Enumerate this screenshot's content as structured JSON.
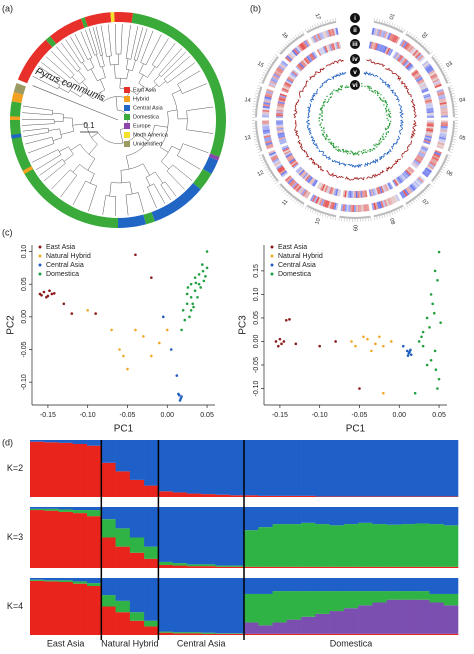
{
  "chart_data": [
    {
      "type": "tree",
      "panel": "(a)",
      "annotation": "Pyrus communis",
      "scale_label": "0.1",
      "legend": [
        {
          "name": "East Asia",
          "color": "#e8302a"
        },
        {
          "name": "Hybrid",
          "color": "#f4a021"
        },
        {
          "name": "Central Asia",
          "color": "#2166c4"
        },
        {
          "name": "Domestica",
          "color": "#3aaa3a"
        },
        {
          "name": "Europe",
          "color": "#8e44ad"
        },
        {
          "name": "North America",
          "color": "#f5e12a"
        },
        {
          "name": "Unidentified",
          "color": "#9a9a62"
        }
      ]
    },
    {
      "type": "circos",
      "panel": "(b)",
      "rings": [
        "i",
        "ii",
        "iii",
        "iv",
        "v",
        "vi"
      ],
      "chromosomes": [
        "01",
        "02",
        "03",
        "04",
        "05",
        "06",
        "07",
        "08",
        "09",
        "10",
        "11",
        "12",
        "13",
        "14",
        "15",
        "16",
        "17"
      ]
    },
    {
      "type": "scatter",
      "panel": "(c)",
      "xlabel": "PC1",
      "ylabel": "PC2",
      "xlim": [
        -0.17,
        0.06
      ],
      "xticks": [
        -0.15,
        {
          "value": -0.1,
          "label": "-0.10"
        },
        -0.05,
        {
          "value": 0,
          "label": "0.00"
        },
        0.05
      ],
      "ylim": [
        -0.135,
        0.11
      ],
      "yticks": [
        {
          "value": -0.1,
          "label": "-0.10"
        },
        -0.05,
        {
          "value": 0,
          "label": "0.00"
        },
        0.05,
        {
          "value": 0.1,
          "label": "0.10"
        }
      ],
      "series": [
        {
          "name": "East Asia",
          "color": "#8b1a1a",
          "x": [
            -0.16,
            -0.155,
            -0.15,
            -0.148,
            -0.145,
            -0.152,
            -0.142,
            -0.158,
            -0.13,
            -0.12,
            -0.09,
            -0.04,
            -0.02
          ],
          "values": [
            0.035,
            0.038,
            0.032,
            0.04,
            0.035,
            0.03,
            0.036,
            0.033,
            0.02,
            0.005,
            0.005,
            0.095,
            0.06
          ]
        },
        {
          "name": "Natural Hybrid",
          "color": "#f0a82a",
          "x": [
            -0.1,
            -0.07,
            -0.06,
            -0.05,
            -0.04,
            -0.03,
            -0.02,
            -0.01,
            0,
            -0.055
          ],
          "values": [
            0.01,
            -0.02,
            -0.05,
            -0.08,
            -0.02,
            -0.03,
            -0.06,
            -0.04,
            -0.02,
            -0.06
          ]
        },
        {
          "name": "Central Asia",
          "color": "#1f5fbf",
          "x": [
            0.015,
            0.017,
            0.014,
            0.018,
            0.016,
            0.012,
            0.005,
            -0.005
          ],
          "values": [
            -0.12,
            -0.125,
            -0.118,
            -0.122,
            -0.128,
            -0.09,
            -0.05,
            0
          ]
        },
        {
          "name": "Domestica",
          "color": "#22a040",
          "x": [
            0.03,
            0.035,
            0.04,
            0.045,
            0.05,
            0.04,
            0.035,
            0.03,
            0.025,
            0.02,
            0.028,
            0.032,
            0.038,
            0.042,
            0.046,
            0.022,
            0.018,
            0.025,
            0.033,
            0.044,
            0.05,
            0.048,
            0.03,
            0.036,
            0.026
          ],
          "values": [
            0.05,
            0.06,
            0.065,
            0.07,
            0.075,
            0.05,
            0.04,
            0.03,
            0.02,
            0.01,
            0,
            0.02,
            0.03,
            0.045,
            0.055,
            -0.005,
            -0.02,
            0.035,
            0.015,
            0.08,
            0.1,
            0.062,
            0.01,
            0.052,
            0.045
          ]
        }
      ]
    },
    {
      "type": "scatter",
      "xlabel": "PC1",
      "ylabel": "PC3",
      "xlim": [
        -0.17,
        0.06
      ],
      "xticks": [
        -0.15,
        {
          "value": -0.1,
          "label": "-0.10"
        },
        -0.05,
        {
          "value": 0,
          "label": "0.00"
        },
        0.05
      ],
      "ylim": [
        -0.135,
        0.205
      ],
      "yticks": [
        {
          "value": -0.1,
          "label": "-0.10"
        },
        -0.05,
        {
          "value": 0,
          "label": "0.00"
        },
        0.05,
        {
          "value": 0.1,
          "label": "0.10"
        },
        0.15
      ],
      "series": [
        {
          "name": "East Asia",
          "color": "#8b1a1a",
          "x": [
            -0.155,
            -0.15,
            -0.148,
            -0.145,
            -0.152,
            -0.142,
            -0.138,
            -0.13,
            -0.1,
            -0.08,
            -0.05
          ],
          "values": [
            0,
            0.005,
            -0.005,
            0,
            -0.01,
            0.045,
            0.047,
            -0.005,
            -0.01,
            0,
            -0.1
          ]
        },
        {
          "name": "Natural Hybrid",
          "color": "#f0a82a",
          "x": [
            -0.06,
            -0.055,
            -0.04,
            -0.03,
            -0.025,
            -0.02,
            -0.035,
            -0.02,
            -0.01,
            -0.045
          ],
          "values": [
            0,
            -0.01,
            0.005,
            -0.005,
            0.01,
            -0.01,
            -0.02,
            -0.11,
            0,
            0.01
          ]
        },
        {
          "name": "Central Asia",
          "color": "#1f5fbf",
          "x": [
            0.01,
            0.012,
            0.014,
            0.011,
            0.013,
            0.015,
            0.005
          ],
          "values": [
            -0.02,
            -0.025,
            -0.018,
            -0.03,
            -0.022,
            -0.028,
            -0.01
          ]
        },
        {
          "name": "Domestica",
          "color": "#22a040",
          "x": [
            0.025,
            0.03,
            0.035,
            0.04,
            0.045,
            0.05,
            0.048,
            0.042,
            0.038,
            0.045,
            0.05,
            0.046,
            0.04,
            0.03,
            0.035,
            0.048,
            0.044,
            0.052,
            0.02,
            0.028
          ],
          "values": [
            0,
            0.02,
            0.05,
            0.1,
            0.15,
            0.19,
            0.13,
            0.08,
            0.03,
            -0.02,
            -0.08,
            -0.06,
            -0.04,
            -0.01,
            -0.05,
            -0.1,
            0.06,
            0.04,
            -0.11,
            0.01
          ]
        }
      ]
    },
    {
      "type": "admixture",
      "panel": "(d)",
      "ylim": [
        0,
        1
      ],
      "categories": [
        "East Asia",
        "East Asia",
        "East Asia",
        "East Asia",
        "East Asia",
        "Natural Hybrid",
        "Natural Hybrid",
        "Natural Hybrid",
        "Natural Hybrid",
        "Central Asia",
        "Central Asia",
        "Central Asia",
        "Central Asia",
        "Central Asia",
        "Central Asia",
        "Domestica",
        "Domestica",
        "Domestica",
        "Domestica",
        "Domestica",
        "Domestica",
        "Domestica",
        "Domestica",
        "Domestica",
        "Domestica",
        "Domestica",
        "Domestica",
        "Domestica",
        "Domestica",
        "Domestica"
      ],
      "rows": [
        {
          "label": "K=2",
          "series": [
            {
              "color": "#e8241c",
              "values": [
                0.97,
                0.96,
                0.95,
                0.93,
                0.9,
                0.6,
                0.45,
                0.3,
                0.2,
                0.1,
                0.08,
                0.06,
                0.05,
                0.04,
                0.03,
                0.03,
                0.02,
                0.02,
                0.02,
                0.02,
                0.01,
                0.01,
                0.01,
                0.01,
                0.01,
                0.01,
                0.01,
                0.01,
                0.01,
                0.01
              ]
            },
            {
              "color": "#1f5fc8",
              "values": [
                0.03,
                0.04,
                0.05,
                0.07,
                0.1,
                0.4,
                0.55,
                0.7,
                0.8,
                0.9,
                0.92,
                0.94,
                0.95,
                0.96,
                0.97,
                0.97,
                0.98,
                0.98,
                0.98,
                0.98,
                0.99,
                0.99,
                0.99,
                0.99,
                0.99,
                0.99,
                0.99,
                0.99,
                0.99,
                0.99
              ]
            }
          ]
        },
        {
          "label": "K=3",
          "series": [
            {
              "color": "#e8241c",
              "values": [
                0.95,
                0.94,
                0.92,
                0.9,
                0.85,
                0.5,
                0.35,
                0.25,
                0.15,
                0.05,
                0.04,
                0.03,
                0.03,
                0.02,
                0.02,
                0.02,
                0.02,
                0.02,
                0.02,
                0.02,
                0.02,
                0.02,
                0.02,
                0.02,
                0.02,
                0.02,
                0.02,
                0.02,
                0.02,
                0.02
              ]
            },
            {
              "color": "#2fb344",
              "values": [
                0.02,
                0.03,
                0.04,
                0.05,
                0.1,
                0.3,
                0.3,
                0.25,
                0.2,
                0.05,
                0.04,
                0.03,
                0.03,
                0.02,
                0.02,
                0.6,
                0.65,
                0.7,
                0.7,
                0.72,
                0.7,
                0.68,
                0.7,
                0.72,
                0.7,
                0.69,
                0.7,
                0.71,
                0.7,
                0.68
              ]
            },
            {
              "color": "#1f5fc8",
              "values": [
                0.03,
                0.03,
                0.04,
                0.05,
                0.05,
                0.2,
                0.35,
                0.5,
                0.65,
                0.9,
                0.92,
                0.94,
                0.94,
                0.96,
                0.96,
                0.38,
                0.33,
                0.28,
                0.28,
                0.26,
                0.28,
                0.3,
                0.28,
                0.26,
                0.28,
                0.29,
                0.28,
                0.27,
                0.28,
                0.3
              ]
            }
          ]
        },
        {
          "label": "K=4",
          "series": [
            {
              "color": "#e8241c",
              "values": [
                0.95,
                0.94,
                0.93,
                0.9,
                0.86,
                0.5,
                0.4,
                0.25,
                0.15,
                0.04,
                0.03,
                0.03,
                0.02,
                0.02,
                0.02,
                0.02,
                0.02,
                0.02,
                0.02,
                0.02,
                0.02,
                0.02,
                0.02,
                0.02,
                0.02,
                0.02,
                0.02,
                0.02,
                0.02,
                0.02
              ]
            },
            {
              "color": "#7b4fb0",
              "values": [
                0,
                0,
                0,
                0,
                0,
                0,
                0,
                0,
                0,
                0,
                0,
                0,
                0,
                0,
                0,
                0.2,
                0.15,
                0.2,
                0.25,
                0.3,
                0.35,
                0.4,
                0.45,
                0.5,
                0.55,
                0.6,
                0.6,
                0.6,
                0.55,
                0.5
              ]
            },
            {
              "color": "#2fb344",
              "values": [
                0.02,
                0.02,
                0.03,
                0.04,
                0.05,
                0.2,
                0.2,
                0.15,
                0.1,
                0.02,
                0.02,
                0.02,
                0.02,
                0.01,
                0.01,
                0.5,
                0.55,
                0.55,
                0.5,
                0.45,
                0.4,
                0.35,
                0.3,
                0.25,
                0.2,
                0.15,
                0.15,
                0.15,
                0.15,
                0.2
              ]
            },
            {
              "color": "#1f5fc8",
              "values": [
                0.03,
                0.04,
                0.04,
                0.06,
                0.09,
                0.3,
                0.4,
                0.6,
                0.75,
                0.94,
                0.95,
                0.95,
                0.96,
                0.97,
                0.97,
                0.28,
                0.28,
                0.23,
                0.23,
                0.23,
                0.23,
                0.23,
                0.23,
                0.23,
                0.23,
                0.23,
                0.23,
                0.23,
                0.28,
                0.28
              ]
            }
          ]
        }
      ]
    }
  ]
}
